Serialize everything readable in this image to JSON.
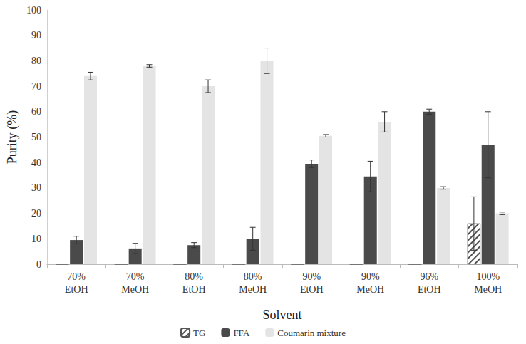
{
  "chart_data": {
    "type": "bar",
    "x_label": "Solvent",
    "y_label": "Purity (%)",
    "categories": [
      "70% EtOH",
      "70% MeOH",
      "80% EtOH",
      "80% MeOH",
      "90% EtOH",
      "90% MeOH",
      "96% EtOH",
      "100% MeOH"
    ],
    "series": [
      {
        "name": "TG",
        "color": "#ffffff",
        "values": [
          0,
          0,
          0,
          0,
          0,
          0,
          0,
          16
        ],
        "errors": [
          0,
          0,
          0,
          0,
          0,
          0,
          0,
          10.5
        ]
      },
      {
        "name": "FFA",
        "color": "#4a4a4a",
        "values": [
          9.5,
          6.2,
          7.5,
          10,
          39.5,
          34.5,
          60,
          47
        ],
        "errors": [
          1.5,
          2,
          1,
          4.5,
          1.5,
          6,
          1,
          13
        ]
      },
      {
        "name": "Coumarin mixture",
        "color": "#e4e4e4",
        "values": [
          74,
          78,
          70,
          80,
          50.5,
          56,
          30,
          20
        ],
        "errors": [
          1.5,
          0.5,
          2.5,
          5,
          0.5,
          4,
          0.5,
          0.5
        ]
      }
    ],
    "ylim": [
      0,
      100
    ],
    "yticks": [
      0,
      10,
      20,
      30,
      40,
      50,
      60,
      70,
      80,
      90,
      100
    ],
    "grid": false,
    "legend": "bottom"
  }
}
